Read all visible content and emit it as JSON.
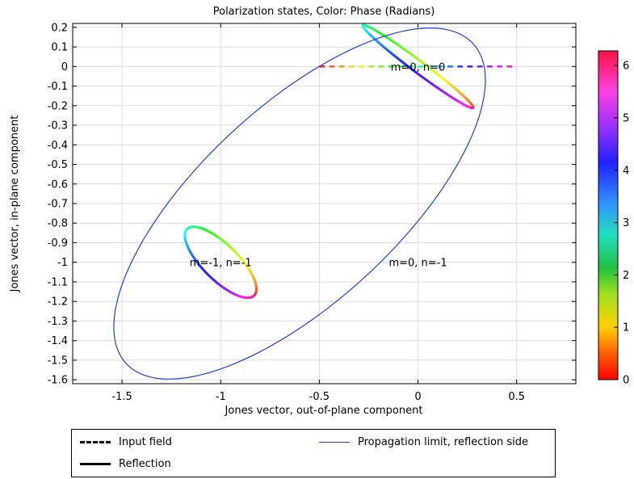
{
  "chart_data": {
    "type": "line",
    "title": "Polarization states, Color: Phase (Radians)",
    "xlabel": "Jones vector, out-of-plane component",
    "ylabel": "Jones vector, in-plane component",
    "xlim": [
      -1.75,
      0.8
    ],
    "ylim": [
      -1.62,
      0.22
    ],
    "xticks": [
      "-1.5",
      "-1",
      "-0.5",
      "0",
      "0.5"
    ],
    "xtick_values": [
      -1.5,
      -1,
      -0.5,
      0,
      0.5
    ],
    "yticks": [
      "0.2",
      "0.1",
      "0",
      "-0.1",
      "-0.2",
      "-0.3",
      "-0.4",
      "-0.5",
      "-0.6",
      "-0.7",
      "-0.8",
      "-0.9",
      "-1",
      "-1.1",
      "-1.2",
      "-1.3",
      "-1.4",
      "-1.5",
      "-1.6"
    ],
    "ytick_values": [
      0.2,
      0.1,
      0,
      -0.1,
      -0.2,
      -0.3,
      -0.4,
      -0.5,
      -0.6,
      -0.7,
      -0.8,
      -0.9,
      -1,
      -1.1,
      -1.2,
      -1.3,
      -1.4,
      -1.5,
      -1.6
    ],
    "grid": true,
    "annotations": [
      {
        "text": "m=0, n=0",
        "x": 0.0,
        "y": 0.0
      },
      {
        "text": "m=-1, n=-1",
        "x": -1.0,
        "y": -1.0
      },
      {
        "text": "m=0, n=-1",
        "x": 0.0,
        "y": -1.0
      }
    ],
    "series": [
      {
        "name": "Input field",
        "style": "dashed",
        "color_by": "phase",
        "x": [
          -0.5,
          0.5
        ],
        "y": [
          0.0,
          0.0
        ]
      },
      {
        "name": "Reflection",
        "label": "m=0, n=0",
        "style": "solid",
        "color_by": "phase",
        "ellipse": {
          "cx": 0.0,
          "cy": 0.0,
          "semi_major": 0.35,
          "semi_minor": 0.03,
          "angle_deg": -37
        }
      },
      {
        "name": "Reflection",
        "label": "m=-1, n=-1",
        "style": "solid",
        "color_by": "phase",
        "ellipse": {
          "cx": -1.0,
          "cy": -1.0,
          "semi_major": 0.24,
          "semi_minor": 0.09,
          "angle_deg": -45
        }
      },
      {
        "name": "Propagation limit, reflection side",
        "style": "solid",
        "color": "#1f3fe0",
        "ellipse": {
          "cx": -0.6,
          "cy": -0.7,
          "semi_major": 1.2,
          "semi_minor": 0.5,
          "angle_deg": 43
        }
      }
    ],
    "colorbar": {
      "range": [
        0,
        6.28
      ],
      "ticks": [
        "0",
        "1",
        "2",
        "3",
        "4",
        "5",
        "6"
      ],
      "tick_values": [
        0,
        1,
        2,
        3,
        4,
        5,
        6
      ]
    },
    "legend": {
      "placement": "bottom",
      "items": [
        {
          "label": "Input field",
          "style": "dashed",
          "color": "#000000"
        },
        {
          "label": "Propagation limit, reflection side",
          "style": "solid",
          "color": "#1f3fe0"
        },
        {
          "label": "Reflection",
          "style": "solid",
          "color": "#000000"
        }
      ]
    }
  }
}
